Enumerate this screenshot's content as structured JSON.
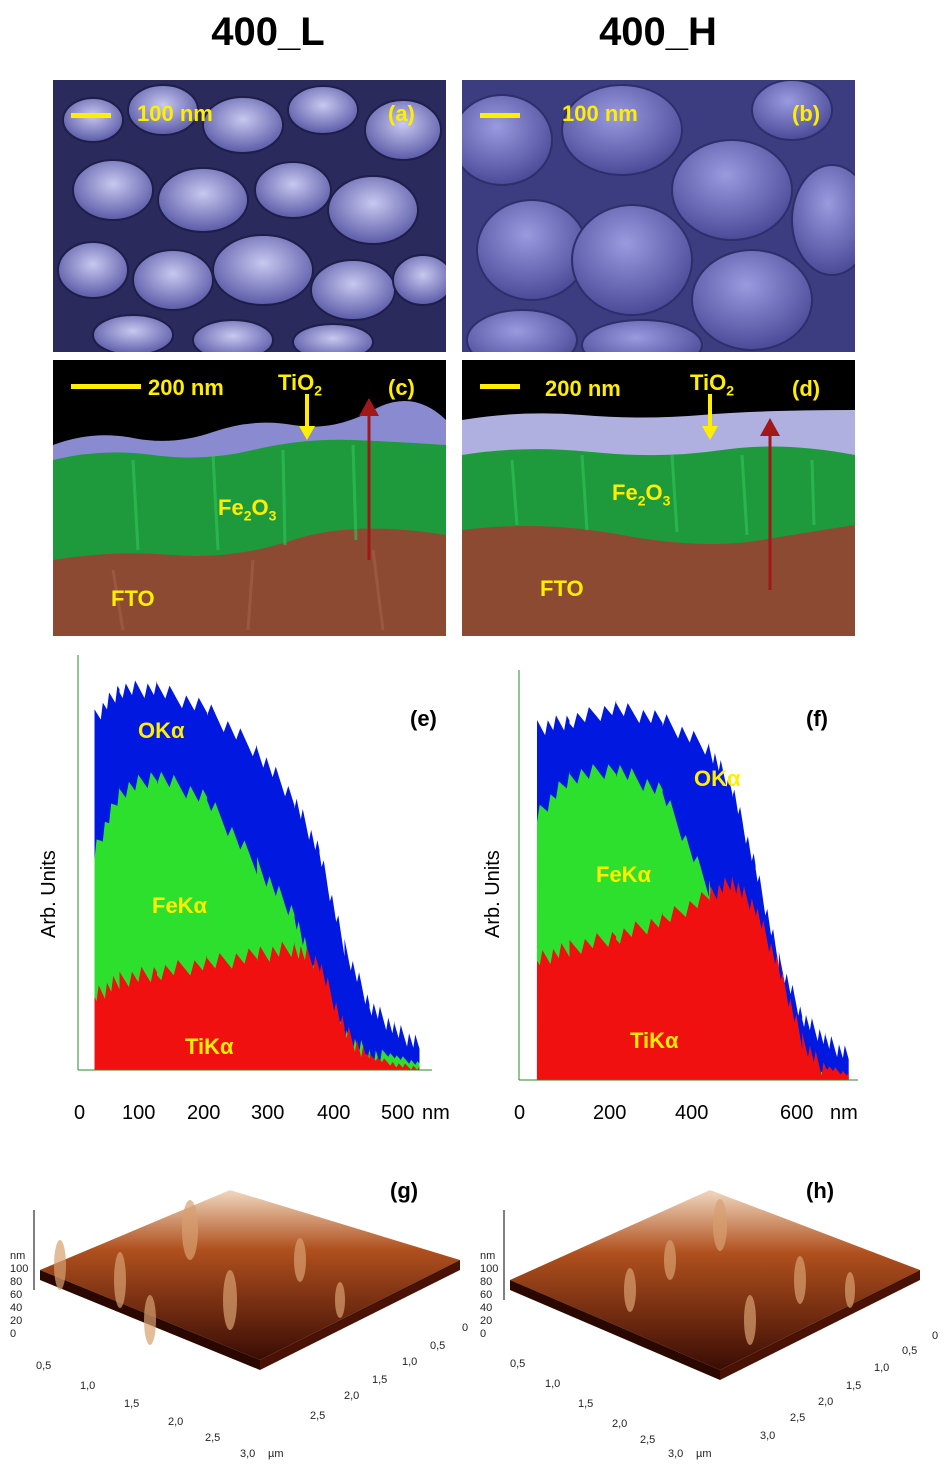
{
  "columns": {
    "left": "400_L",
    "right": "400_H"
  },
  "panels": {
    "a": {
      "label": "(a)",
      "scale": "100 nm"
    },
    "b": {
      "label": "(b)",
      "scale": "100 nm"
    },
    "c": {
      "label": "(c)",
      "scale": "200 nm",
      "top": "TiO",
      "top_sub": "2",
      "mid": "Fe",
      "mid_sub1": "2",
      "mid_o": "O",
      "mid_sub2": "3",
      "bottom": "FTO"
    },
    "d": {
      "label": "(d)",
      "scale": "200 nm",
      "top": "TiO",
      "top_sub": "2",
      "mid": "Fe",
      "mid_sub1": "2",
      "mid_o": "O",
      "mid_sub2": "3",
      "bottom": "FTO"
    },
    "e": {
      "label": "(e)",
      "ylabel": "Arb. Units",
      "series": [
        "OKα",
        "FeKα",
        "TiKα"
      ],
      "xticks": [
        "0",
        "100",
        "200",
        "300",
        "400",
        "500"
      ],
      "xunit": "nm"
    },
    "f": {
      "label": "(f)",
      "ylabel": "Arb. Units",
      "series": [
        "OKα",
        "FeKα",
        "TiKα"
      ],
      "xticks": [
        "0",
        "200",
        "400",
        "600"
      ],
      "xunit": "nm"
    },
    "g": {
      "label": "(g)",
      "zunit": "nm",
      "zticks": [
        "100",
        "80",
        "60",
        "40",
        "20",
        "0"
      ],
      "xticks": [
        "0,5",
        "1,0",
        "1,5",
        "2,0",
        "2,5",
        "3,0"
      ],
      "yticks": [
        "0",
        "0,5",
        "1,0",
        "1,5",
        "2,0",
        "2,5"
      ],
      "unit": "µm"
    },
    "h": {
      "label": "(h)",
      "zunit": "nm",
      "zticks": [
        "100",
        "80",
        "60",
        "40",
        "20",
        "0"
      ],
      "xticks": [
        "0,5",
        "1,0",
        "1,5",
        "2,0",
        "2,5",
        "3,0"
      ],
      "yticks": [
        "0",
        "0,5",
        "1,0",
        "1,5",
        "2,0",
        "2,5",
        "3,0"
      ],
      "unit": "µm"
    }
  },
  "chart_data": [
    {
      "type": "area",
      "panel": "(e)",
      "ylabel": "Arb. Units",
      "xunit": "nm",
      "xlim": [
        0,
        560
      ],
      "series": [
        {
          "name": "OKα",
          "x": [
            20,
            60,
            120,
            200,
            280,
            340,
            380,
            420,
            460,
            500,
            540
          ],
          "y": [
            0.88,
            0.95,
            0.95,
            0.9,
            0.8,
            0.68,
            0.55,
            0.32,
            0.18,
            0.12,
            0.08
          ]
        },
        {
          "name": "FeKα",
          "x": [
            20,
            60,
            120,
            200,
            280,
            340,
            380,
            420,
            460,
            500,
            540
          ],
          "y": [
            0.55,
            0.7,
            0.74,
            0.68,
            0.52,
            0.4,
            0.22,
            0.1,
            0.06,
            0.04,
            0.02
          ]
        },
        {
          "name": "TiKα",
          "x": [
            20,
            60,
            120,
            200,
            280,
            340,
            380,
            420,
            460,
            500,
            540
          ],
          "y": [
            0.2,
            0.24,
            0.26,
            0.28,
            0.3,
            0.32,
            0.28,
            0.12,
            0.04,
            0.02,
            0.01
          ]
        }
      ]
    },
    {
      "type": "area",
      "panel": "(f)",
      "ylabel": "Arb. Units",
      "xunit": "nm",
      "xlim": [
        0,
        720
      ],
      "series": [
        {
          "name": "OKα",
          "x": [
            30,
            100,
            200,
            300,
            400,
            450,
            500,
            550,
            600,
            650,
            700
          ],
          "y": [
            0.9,
            0.92,
            0.95,
            0.92,
            0.85,
            0.75,
            0.55,
            0.32,
            0.18,
            0.12,
            0.08
          ]
        },
        {
          "name": "FeKα",
          "x": [
            30,
            100,
            200,
            300,
            400,
            450,
            500,
            550,
            600,
            650,
            700
          ],
          "y": [
            0.68,
            0.78,
            0.8,
            0.74,
            0.5,
            0.32,
            0.18,
            0.08,
            0.04,
            0.02,
            0.01
          ]
        },
        {
          "name": "TiKα",
          "x": [
            30,
            100,
            200,
            300,
            400,
            450,
            500,
            550,
            600,
            650,
            700
          ],
          "y": [
            0.32,
            0.35,
            0.38,
            0.42,
            0.48,
            0.52,
            0.45,
            0.3,
            0.12,
            0.04,
            0.02
          ]
        }
      ]
    }
  ]
}
